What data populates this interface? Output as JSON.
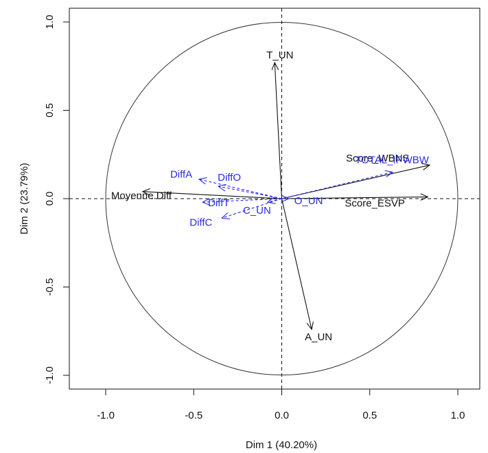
{
  "chart_data": {
    "type": "scatter",
    "subtype": "pca-correlation-circle",
    "xlabel": "Dim 1 (40.20%)",
    "ylabel": "Dim 2 (23.79%)",
    "xlim": [
      -1.2,
      1.2
    ],
    "ylim": [
      -1.1,
      1.1
    ],
    "xticks": [
      "-1.0",
      "-0.5",
      "0.0",
      "0.5",
      "1.0"
    ],
    "yticks": [
      "-1.0",
      "-0.5",
      "0.0",
      "0.5",
      "1.0"
    ],
    "grid": false,
    "unit_circle": true,
    "reference_lines": [
      "x=0",
      "y=0"
    ],
    "colors": {
      "active": "#111111",
      "supplementary": "#2b2bea"
    },
    "variables": [
      {
        "name": "T_UN",
        "x": -0.04,
        "y": 0.77,
        "group": "active"
      },
      {
        "name": "A_UN",
        "x": 0.17,
        "y": -0.74,
        "group": "active"
      },
      {
        "name": "Score_WBNS",
        "x": 0.84,
        "y": 0.19,
        "group": "active"
      },
      {
        "name": "Score_ESVP",
        "x": 0.83,
        "y": 0.01,
        "group": "active"
      },
      {
        "name": "Moyenne.Diff",
        "x": -0.79,
        "y": 0.04,
        "group": "active"
      },
      {
        "name": "TOTAL_IPWBW",
        "x": 0.63,
        "y": 0.15,
        "group": "supplementary"
      },
      {
        "name": "DiffA",
        "x": -0.47,
        "y": 0.11,
        "group": "supplementary"
      },
      {
        "name": "DiffO",
        "x": -0.36,
        "y": 0.07,
        "group": "supplementary"
      },
      {
        "name": "DiffT",
        "x": -0.45,
        "y": -0.02,
        "group": "supplementary"
      },
      {
        "name": "DiffC",
        "x": -0.34,
        "y": -0.11,
        "group": "supplementary"
      },
      {
        "name": "C_UN",
        "x": -0.08,
        "y": -0.02,
        "group": "supplementary"
      },
      {
        "name": "O_UN",
        "x": 0.04,
        "y": 0.0,
        "group": "supplementary"
      }
    ]
  }
}
